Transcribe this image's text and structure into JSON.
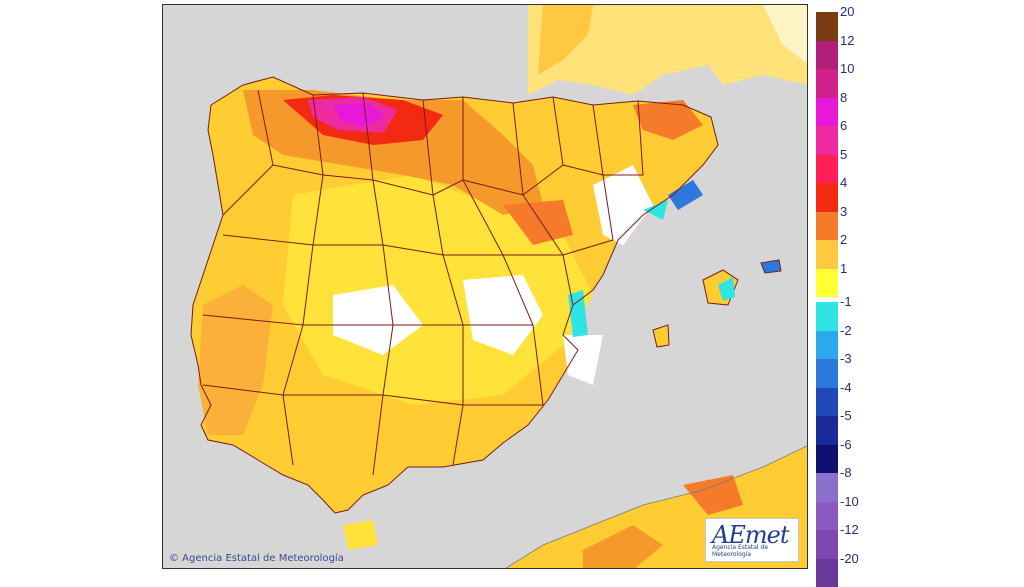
{
  "map": {
    "copyright": "© Agencia Estatal de Meteorología",
    "logo": {
      "main": "AEmet",
      "subtitle": "Agencia Estatal de Meteorología"
    }
  },
  "legend": {
    "positive": [
      {
        "label": "20",
        "color": "#7a3a12"
      },
      {
        "label": "12",
        "color": "#b0207a"
      },
      {
        "label": "10",
        "color": "#d0208c"
      },
      {
        "label": "8",
        "color": "#e818d8"
      },
      {
        "label": "6",
        "color": "#ee2aa0"
      },
      {
        "label": "5",
        "color": "#ff1e56"
      },
      {
        "label": "4",
        "color": "#f22a12"
      },
      {
        "label": "3",
        "color": "#f57a2a"
      },
      {
        "label": "2",
        "color": "#ffc840"
      },
      {
        "label": "1",
        "color": "#ffff33"
      }
    ],
    "negative": [
      {
        "label": "-1",
        "color": "#30e4e4"
      },
      {
        "label": "-2",
        "color": "#2ca8ec"
      },
      {
        "label": "-3",
        "color": "#2c78dc"
      },
      {
        "label": "-4",
        "color": "#2248b8"
      },
      {
        "label": "-5",
        "color": "#1a2a98"
      },
      {
        "label": "-6",
        "color": "#101070"
      },
      {
        "label": "-8",
        "color": "#8a70cc"
      },
      {
        "label": "-10",
        "color": "#8a5ac0"
      },
      {
        "label": "-12",
        "color": "#7e48b0"
      },
      {
        "label": "-20",
        "color": "#6a3898"
      }
    ]
  }
}
